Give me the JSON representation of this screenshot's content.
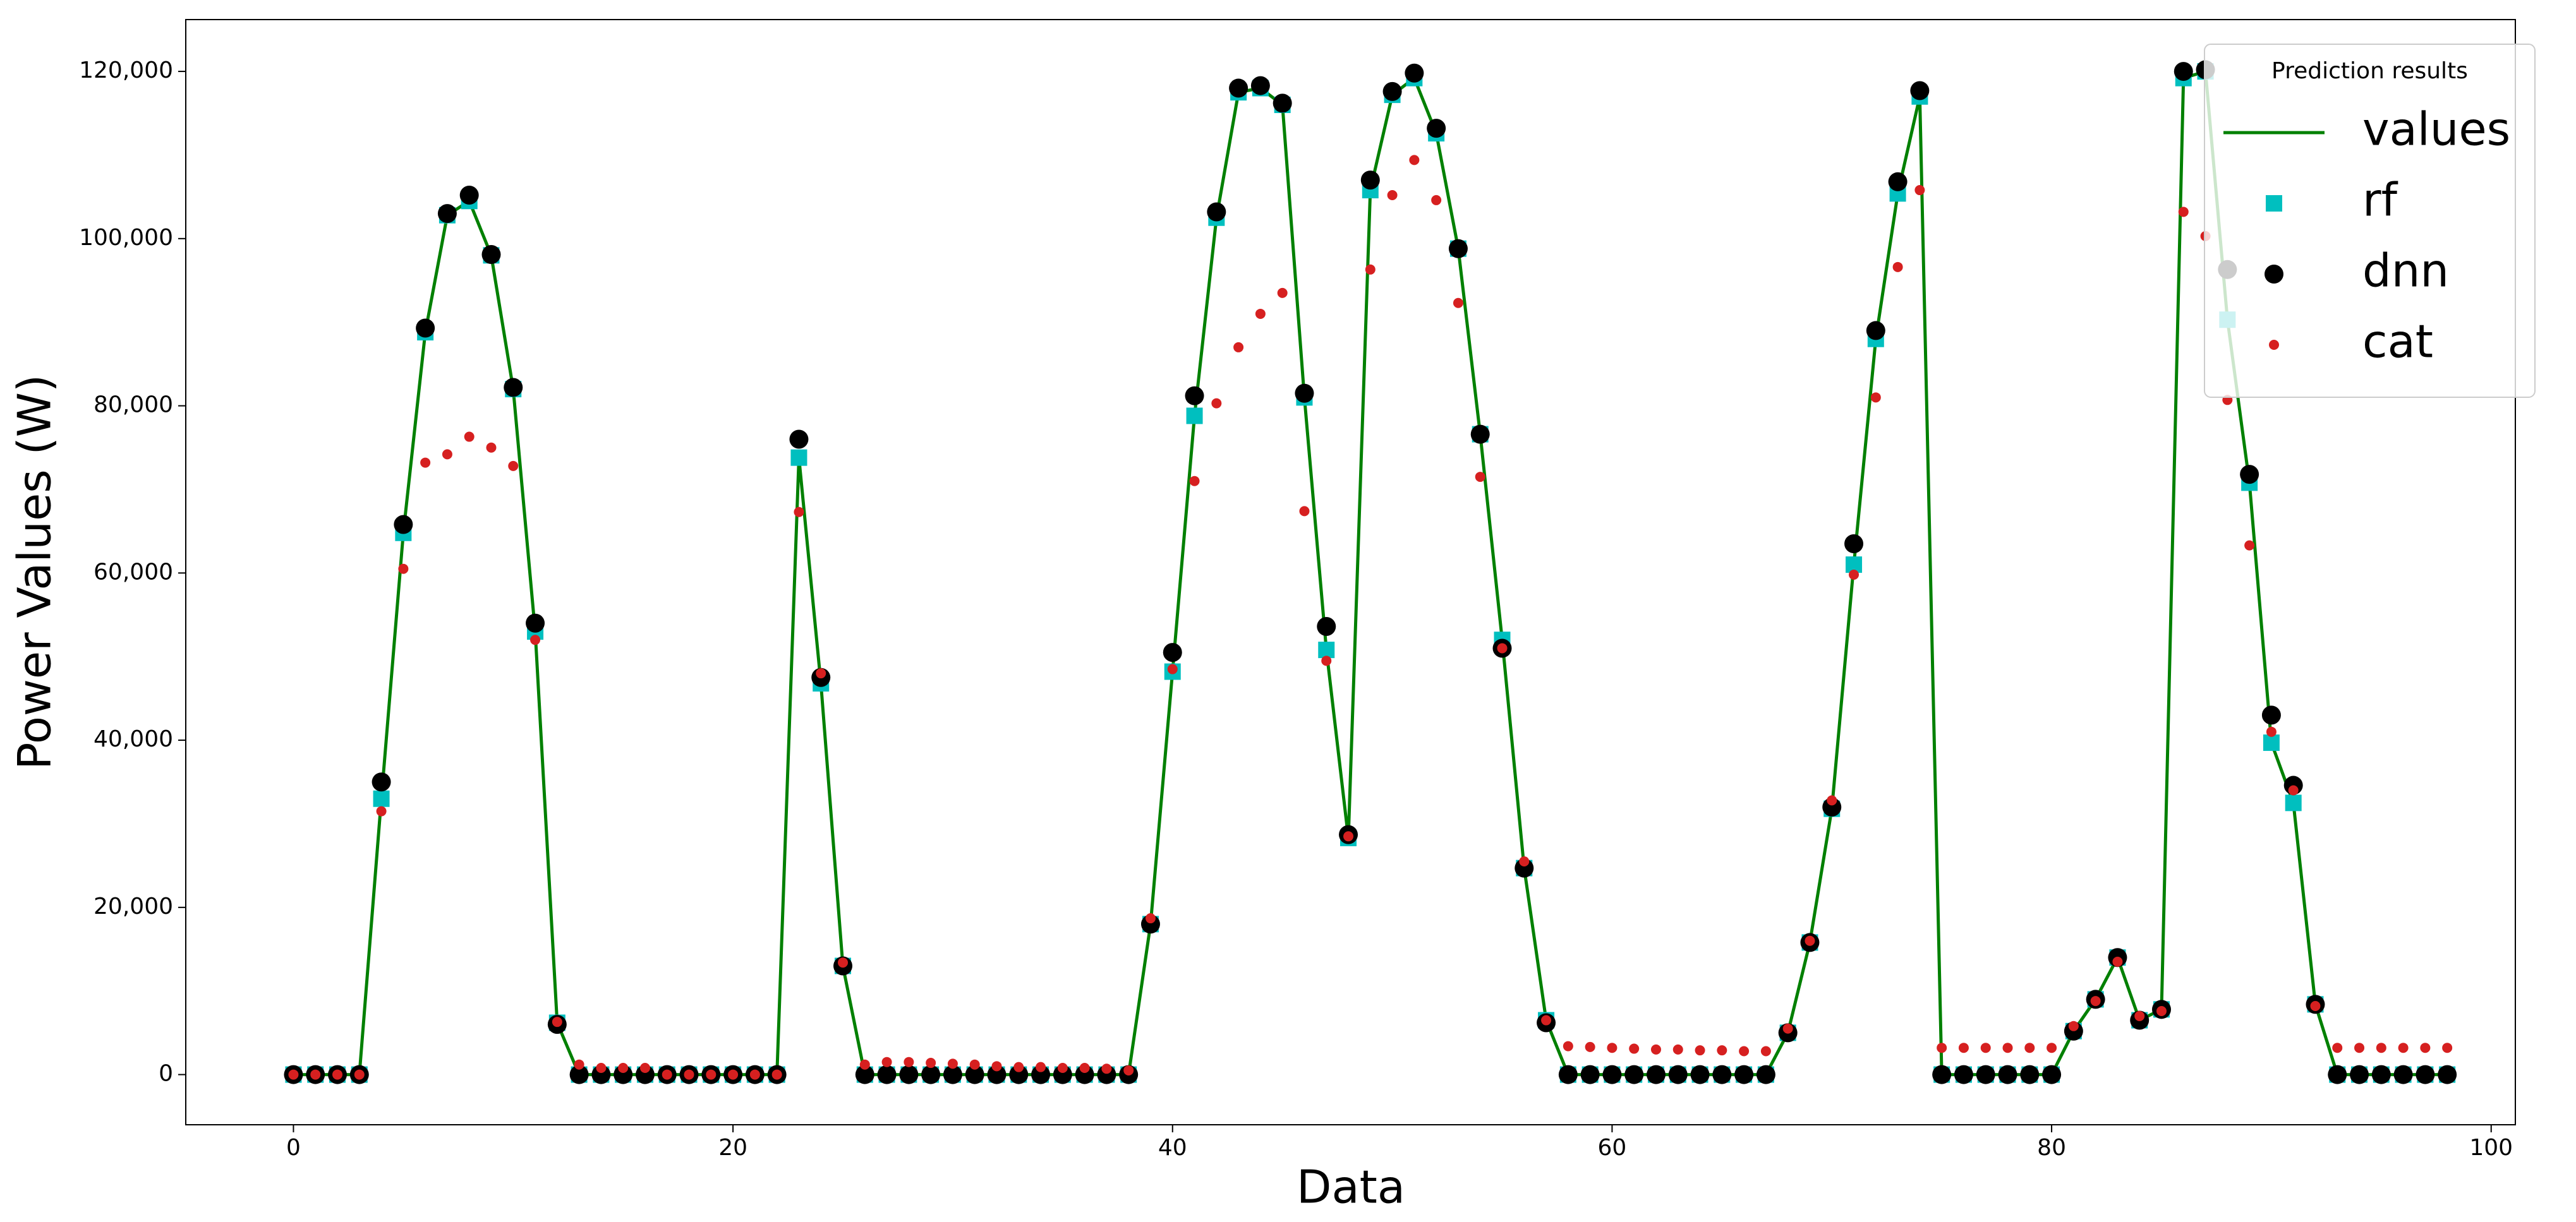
{
  "chart_data": {
    "type": "line",
    "xlabel": "Data",
    "ylabel": "Power Values (W)",
    "legend_title": "Prediction results",
    "legend": "upper right",
    "x": [
      0,
      1,
      2,
      3,
      4,
      5,
      6,
      7,
      8,
      9,
      10,
      11,
      12,
      13,
      14,
      15,
      16,
      17,
      18,
      19,
      20,
      21,
      22,
      23,
      24,
      25,
      26,
      27,
      28,
      29,
      30,
      31,
      32,
      33,
      34,
      35,
      36,
      37,
      38,
      39,
      40,
      41,
      42,
      43,
      44,
      45,
      46,
      47,
      48,
      49,
      50,
      51,
      52,
      53,
      54,
      55,
      56,
      57,
      58,
      59,
      60,
      61,
      62,
      63,
      64,
      65,
      66,
      67,
      68,
      69,
      70,
      71,
      72,
      73,
      74,
      75,
      76,
      77,
      78,
      79,
      80,
      81,
      82,
      83,
      84,
      85,
      86,
      87,
      88,
      89,
      90,
      91,
      92,
      93,
      94,
      95,
      96,
      97,
      98
    ],
    "series": [
      {
        "name": "values",
        "color": "#008000",
        "marker": "line",
        "values": [
          0,
          0,
          0,
          0,
          33000,
          64800,
          88800,
          102800,
          104500,
          98000,
          82000,
          53000,
          6200,
          0,
          0,
          0,
          0,
          0,
          0,
          0,
          0,
          0,
          0,
          73800,
          46800,
          13000,
          0,
          0,
          0,
          0,
          0,
          0,
          0,
          0,
          0,
          0,
          0,
          0,
          0,
          18000,
          48200,
          78800,
          102500,
          117500,
          118000,
          116000,
          81000,
          50800,
          28300,
          105800,
          117200,
          119200,
          112600,
          98800,
          76600,
          52000,
          24700,
          6500,
          0,
          0,
          0,
          0,
          0,
          0,
          0,
          0,
          0,
          0,
          5000,
          15800,
          31800,
          61000,
          88000,
          105400,
          117000,
          0,
          0,
          0,
          0,
          0,
          0,
          5200,
          9000,
          14000,
          6500,
          7800,
          119200,
          120000,
          90300,
          70800,
          39700,
          32500,
          8400,
          0,
          0,
          0,
          0,
          0,
          0
        ]
      },
      {
        "name": "rf",
        "color": "#00bfbf",
        "marker": "square",
        "values": [
          0,
          0,
          0,
          0,
          33000,
          64800,
          88800,
          102800,
          104500,
          98000,
          82000,
          53000,
          6200,
          0,
          0,
          0,
          0,
          0,
          0,
          0,
          0,
          0,
          0,
          73800,
          46800,
          13000,
          0,
          0,
          0,
          0,
          0,
          0,
          0,
          0,
          0,
          0,
          0,
          0,
          0,
          18000,
          48200,
          78800,
          102500,
          117500,
          118000,
          116000,
          81000,
          50800,
          28300,
          105800,
          117200,
          119200,
          112600,
          98800,
          76600,
          52000,
          24700,
          6500,
          0,
          0,
          0,
          0,
          0,
          0,
          0,
          0,
          0,
          0,
          5000,
          15800,
          31800,
          61000,
          88000,
          105400,
          117000,
          0,
          0,
          0,
          0,
          0,
          0,
          5200,
          9000,
          14000,
          6500,
          7800,
          119200,
          120000,
          90300,
          70800,
          39700,
          32500,
          8400,
          0,
          0,
          0,
          0,
          0,
          0
        ]
      },
      {
        "name": "dnn",
        "color": "#000000",
        "marker": "circle",
        "values": [
          0,
          0,
          0,
          0,
          35000,
          65800,
          89300,
          103000,
          105200,
          98100,
          82200,
          54000,
          6000,
          0,
          0,
          0,
          0,
          0,
          0,
          0,
          0,
          0,
          0,
          76000,
          47500,
          13000,
          0,
          0,
          0,
          0,
          0,
          0,
          0,
          0,
          0,
          0,
          0,
          0,
          0,
          18000,
          50500,
          81200,
          103200,
          118000,
          118300,
          116200,
          81500,
          53600,
          28700,
          107000,
          117600,
          119800,
          113200,
          98800,
          76600,
          51000,
          24700,
          6200,
          0,
          0,
          0,
          0,
          0,
          0,
          0,
          0,
          0,
          0,
          5000,
          15800,
          32000,
          63500,
          89000,
          106800,
          117700,
          0,
          0,
          0,
          0,
          0,
          0,
          5200,
          9000,
          14000,
          6500,
          7800,
          120000,
          120200,
          96300,
          71800,
          43000,
          34600,
          8400,
          0,
          0,
          0,
          0,
          0,
          0
        ]
      },
      {
        "name": "cat",
        "color": "#d62020",
        "marker": "dot",
        "values": [
          0,
          0,
          0,
          0,
          31500,
          60500,
          73200,
          74200,
          76300,
          75000,
          72800,
          52000,
          6300,
          1200,
          800,
          800,
          800,
          0,
          0,
          0,
          0,
          0,
          0,
          67300,
          48000,
          13400,
          1200,
          1500,
          1500,
          1400,
          1300,
          1200,
          1000,
          900,
          900,
          800,
          800,
          700,
          500,
          18700,
          48500,
          71000,
          80300,
          87000,
          91000,
          93500,
          67400,
          49500,
          28500,
          96300,
          105200,
          109400,
          104600,
          92300,
          71500,
          51000,
          25500,
          6500,
          3400,
          3300,
          3200,
          3100,
          3000,
          3000,
          2900,
          2900,
          2800,
          2800,
          5500,
          16000,
          32800,
          59800,
          81000,
          96600,
          105800,
          3200,
          3200,
          3200,
          3200,
          3200,
          3200,
          5800,
          8800,
          13500,
          7000,
          7600,
          103200,
          100300,
          80700,
          63300,
          41000,
          34000,
          8200,
          3200,
          3200,
          3200,
          3200,
          3200,
          3200
        ]
      }
    ],
    "xlim": [
      -4.9,
      101.1
    ],
    "xticks": [
      0,
      20,
      40,
      60,
      80,
      100
    ],
    "ylim": [
      -6000,
      126200
    ],
    "yticks": [
      0,
      {
        "value": 20000,
        "label": "20,000"
      },
      {
        "value": 40000,
        "label": "40,000"
      },
      {
        "value": 60000,
        "label": "60,000"
      },
      {
        "value": 80000,
        "label": "80,000"
      },
      {
        "value": 100000,
        "label": "100,000"
      },
      {
        "value": 120000,
        "label": "120,000"
      }
    ],
    "grid": false
  }
}
